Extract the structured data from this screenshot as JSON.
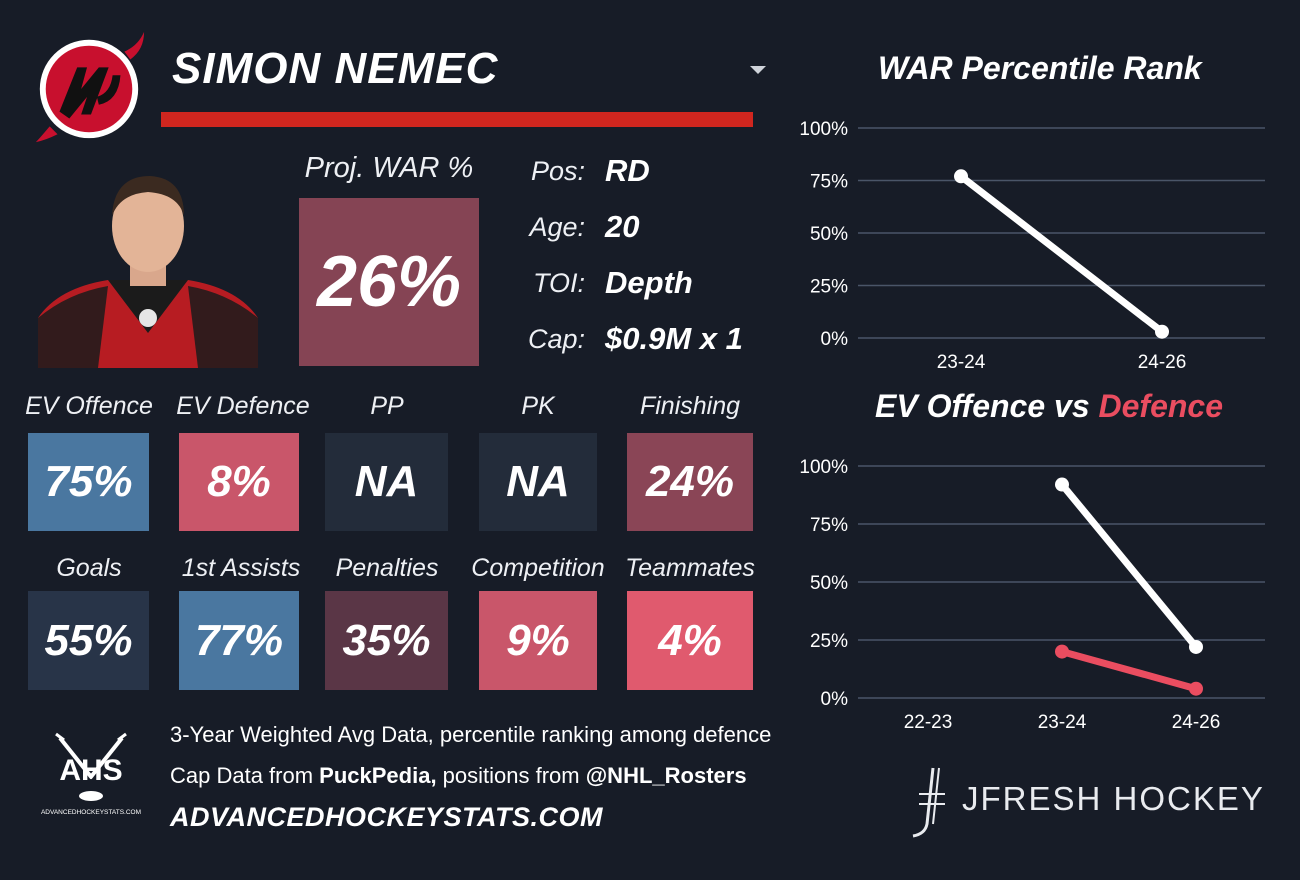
{
  "player": {
    "name": "SIMON NEMEC"
  },
  "projected_war": {
    "label": "Proj. WAR %",
    "value": "26%",
    "color": "#854454"
  },
  "info": [
    {
      "key": "Pos:",
      "value": "RD"
    },
    {
      "key": "Age:",
      "value": "20"
    },
    {
      "key": "TOI:",
      "value": "Depth"
    },
    {
      "key": "Cap:",
      "value": "$0.9M x 1"
    }
  ],
  "stats_row1": [
    {
      "label": "EV Offence",
      "value": "75%",
      "color": "#4a77a0"
    },
    {
      "label": "EV Defence",
      "value": "8%",
      "color": "#c9566a"
    },
    {
      "label": "PP",
      "value": "NA",
      "color": "#232c3a"
    },
    {
      "label": "PK",
      "value": "NA",
      "color": "#232c3a"
    },
    {
      "label": "Finishing",
      "value": "24%",
      "color": "#8a4556"
    }
  ],
  "stats_row2": [
    {
      "label": "Goals",
      "value": "55%",
      "color": "#283448"
    },
    {
      "label": "1st Assists",
      "value": "77%",
      "color": "#4a77a0"
    },
    {
      "label": "Penalties",
      "value": "35%",
      "color": "#5a3646"
    },
    {
      "label": "Competition",
      "value": "9%",
      "color": "#c9566a"
    },
    {
      "label": "Teammates",
      "value": "4%",
      "color": "#e05a6e"
    }
  ],
  "chart_data": [
    {
      "type": "line",
      "title": "WAR Percentile Rank",
      "x": [
        "23-24",
        "24-26"
      ],
      "series": [
        {
          "values": [
            77,
            3
          ],
          "color": "#ffffff"
        }
      ],
      "yticks": [
        "100%",
        "75%",
        "50%",
        "25%",
        "0%"
      ],
      "ylim": [
        0,
        100
      ],
      "grid": true
    },
    {
      "type": "line",
      "title_parts": [
        "EV Offence vs ",
        "Defence"
      ],
      "x": [
        "22-23",
        "23-24",
        "24-26"
      ],
      "series": [
        {
          "values": [
            null,
            92,
            22
          ],
          "color": "#ffffff"
        },
        {
          "values": [
            null,
            20,
            4
          ],
          "color": "#ea4d60"
        }
      ],
      "yticks": [
        "100%",
        "75%",
        "50%",
        "25%",
        "0%"
      ],
      "ylim": [
        0,
        100
      ],
      "grid": true
    }
  ],
  "footer": {
    "ahs_logo_text": "AHS",
    "ahs_logo_subtext": "ADVANCEDHOCKEYSTATS.COM",
    "line1": "3-Year Weighted Avg Data, percentile ranking among defence",
    "line2_prefix": "Cap Data from ",
    "line2_bold1": "PuckPedia,",
    "line2_middle": " positions from ",
    "line2_bold2": "@NHL_Rosters",
    "website": "ADVANCEDHOCKEYSTATS.COM",
    "brand": "JFRESH HOCKEY"
  },
  "colors": {
    "background": "#171c27",
    "accent_red": "#d0261f",
    "grid": "#4a5568"
  },
  "icons": [
    "new-jersey-devils-logo",
    "player-headshot",
    "dropdown-caret-icon",
    "ahs-logo",
    "jfresh-hockey-logo"
  ]
}
